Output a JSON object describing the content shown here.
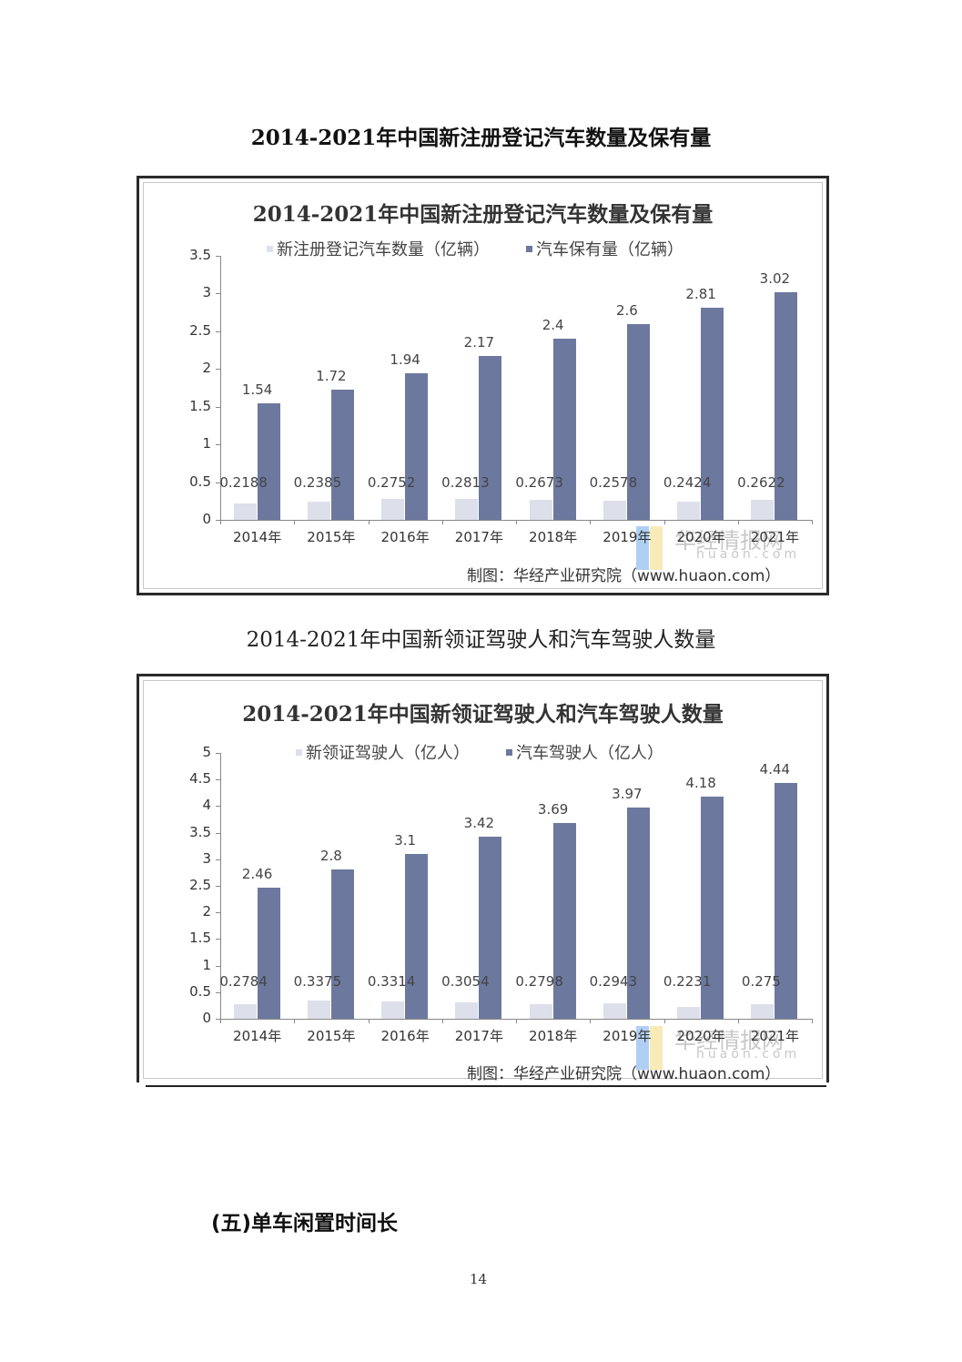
{
  "page": {
    "caption1": "2014-2021年中国新注册登记汽车数量及保有量",
    "caption2": "2014-2021年中国新领证驾驶人和汽车驾驶人数量",
    "section_heading": "(五)单车闲置时间长",
    "page_number": "14"
  },
  "charts": [
    {
      "title": "2014-2021年中国新注册登记汽车数量及保有量",
      "legend": [
        "新注册登记汽车数量（亿辆）",
        "汽车保有量（亿辆）"
      ],
      "source": "制图：华经产业研究院（www.huaon.com）",
      "watermark": "华经情报网",
      "watermark_sub": "huaon.com",
      "yticks": [
        "0",
        "0.5",
        "1",
        "1.5",
        "2",
        "2.5",
        "3",
        "3.5"
      ],
      "xlabels": [
        "2014年",
        "2015年",
        "2016年",
        "2017年",
        "2018年",
        "2019年",
        "2020年",
        "2021年"
      ],
      "labels_a": [
        "0.2188",
        "0.2385",
        "0.2752",
        "0.2813",
        "0.2673",
        "0.2578",
        "0.2424",
        "0.2622"
      ],
      "labels_b": [
        "1.54",
        "1.72",
        "1.94",
        "2.17",
        "2.4",
        "2.6",
        "2.81",
        "3.02"
      ]
    },
    {
      "title": "2014-2021年中国新领证驾驶人和汽车驾驶人数量",
      "legend": [
        "新领证驾驶人（亿人）",
        "汽车驾驶人（亿人）"
      ],
      "source": "制图：华经产业研究院（www.huaon.com）",
      "watermark": "华经情报网",
      "watermark_sub": "huaon.com",
      "yticks": [
        "0",
        "0.5",
        "1",
        "1.5",
        "2",
        "2.5",
        "3",
        "3.5",
        "4",
        "4.5",
        "5"
      ],
      "xlabels": [
        "2014年",
        "2015年",
        "2016年",
        "2017年",
        "2018年",
        "2019年",
        "2020年",
        "2021年"
      ],
      "labels_a": [
        "0.2784",
        "0.3375",
        "0.3314",
        "0.3054",
        "0.2798",
        "0.2943",
        "0.2231",
        "0.275"
      ],
      "labels_b": [
        "2.46",
        "2.8",
        "3.1",
        "3.42",
        "3.69",
        "3.97",
        "4.18",
        "4.44"
      ]
    }
  ],
  "colors": {
    "series_a": "#dde0ea",
    "series_b": "#6c789e"
  },
  "chart_data": [
    {
      "type": "bar",
      "title": "2014-2021年中国新注册登记汽车数量及保有量",
      "categories": [
        "2014年",
        "2015年",
        "2016年",
        "2017年",
        "2018年",
        "2019年",
        "2020年",
        "2021年"
      ],
      "series": [
        {
          "name": "新注册登记汽车数量（亿辆）",
          "values": [
            0.2188,
            0.2385,
            0.2752,
            0.2813,
            0.2673,
            0.2578,
            0.2424,
            0.2622
          ]
        },
        {
          "name": "汽车保有量（亿辆）",
          "values": [
            1.54,
            1.72,
            1.94,
            2.17,
            2.4,
            2.6,
            2.81,
            3.02
          ]
        }
      ],
      "xlabel": "",
      "ylabel": "",
      "ylim": [
        0,
        3.5
      ],
      "yticks": [
        0,
        0.5,
        1,
        1.5,
        2,
        2.5,
        3,
        3.5
      ],
      "grid": false,
      "legend_position": "top"
    },
    {
      "type": "bar",
      "title": "2014-2021年中国新领证驾驶人和汽车驾驶人数量",
      "categories": [
        "2014年",
        "2015年",
        "2016年",
        "2017年",
        "2018年",
        "2019年",
        "2020年",
        "2021年"
      ],
      "series": [
        {
          "name": "新领证驾驶人（亿人）",
          "values": [
            0.2784,
            0.3375,
            0.3314,
            0.3054,
            0.2798,
            0.2943,
            0.2231,
            0.275
          ]
        },
        {
          "name": "汽车驾驶人（亿人）",
          "values": [
            2.46,
            2.8,
            3.1,
            3.42,
            3.69,
            3.97,
            4.18,
            4.44
          ]
        }
      ],
      "xlabel": "",
      "ylabel": "",
      "ylim": [
        0,
        5
      ],
      "yticks": [
        0,
        0.5,
        1,
        1.5,
        2,
        2.5,
        3,
        3.5,
        4,
        4.5,
        5
      ],
      "grid": false,
      "legend_position": "top"
    }
  ]
}
